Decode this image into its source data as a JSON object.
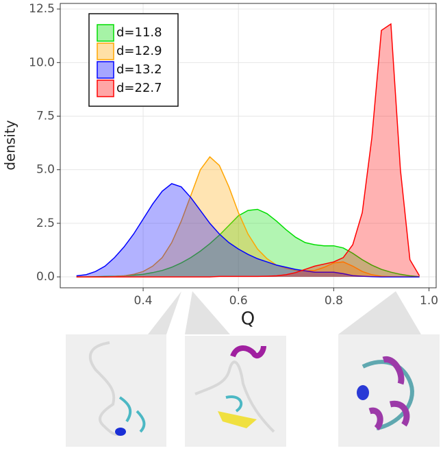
{
  "chart_data": {
    "type": "area",
    "x_label": "Q",
    "y_label": "density",
    "x": [
      0.26,
      0.28,
      0.3,
      0.32,
      0.34,
      0.36,
      0.38,
      0.4,
      0.42,
      0.44,
      0.46,
      0.48,
      0.5,
      0.52,
      0.54,
      0.56,
      0.58,
      0.6,
      0.62,
      0.64,
      0.66,
      0.68,
      0.7,
      0.72,
      0.74,
      0.76,
      0.78,
      0.8,
      0.82,
      0.84,
      0.86,
      0.88,
      0.9,
      0.92,
      0.94,
      0.96,
      0.98
    ],
    "series": [
      {
        "name": "d=11.8",
        "color": "#00dd00",
        "values": [
          0,
          0,
          0.01,
          0.02,
          0.03,
          0.05,
          0.08,
          0.12,
          0.2,
          0.3,
          0.45,
          0.65,
          0.9,
          1.2,
          1.55,
          1.95,
          2.4,
          2.85,
          3.1,
          3.15,
          2.95,
          2.6,
          2.2,
          1.85,
          1.6,
          1.5,
          1.45,
          1.45,
          1.35,
          1.1,
          0.8,
          0.55,
          0.35,
          0.22,
          0.12,
          0.05,
          0.01
        ]
      },
      {
        "name": "d=12.9",
        "color": "#ffa500",
        "values": [
          0,
          0,
          0,
          0,
          0.02,
          0.05,
          0.12,
          0.25,
          0.5,
          0.9,
          1.6,
          2.6,
          3.8,
          5.0,
          5.6,
          5.2,
          4.2,
          3.0,
          2.0,
          1.3,
          0.85,
          0.55,
          0.4,
          0.3,
          0.28,
          0.3,
          0.45,
          0.65,
          0.7,
          0.5,
          0.25,
          0.1,
          0.03,
          0.01,
          0,
          0,
          0
        ]
      },
      {
        "name": "d=13.2",
        "color": "#0000ff",
        "values": [
          0.05,
          0.1,
          0.25,
          0.5,
          0.9,
          1.4,
          2.0,
          2.7,
          3.4,
          4.0,
          4.35,
          4.2,
          3.7,
          3.1,
          2.5,
          2.0,
          1.6,
          1.3,
          1.05,
          0.85,
          0.7,
          0.55,
          0.45,
          0.35,
          0.28,
          0.22,
          0.22,
          0.22,
          0.15,
          0.06,
          0.03,
          0.01,
          0,
          0,
          0,
          0,
          0
        ]
      },
      {
        "name": "d=22.7",
        "color": "#ff0000",
        "values": [
          0,
          0,
          0,
          0,
          0,
          0,
          0,
          0,
          0,
          0,
          0,
          0,
          0,
          0,
          0,
          0.02,
          0.02,
          0.02,
          0.02,
          0.02,
          0.03,
          0.05,
          0.1,
          0.2,
          0.35,
          0.5,
          0.6,
          0.7,
          0.9,
          1.5,
          3.0,
          6.5,
          11.5,
          11.8,
          5.0,
          0.8,
          0.05
        ]
      }
    ],
    "xlim": [
      0.226,
      1.015
    ],
    "ylim": [
      -0.51,
      12.76
    ],
    "xticks": [
      0.4,
      0.6,
      0.8,
      {
        "value": 1.0,
        "label": "1.0"
      }
    ],
    "yticks": [
      {
        "value": 0,
        "label": "0.0"
      },
      2.5,
      {
        "value": 5,
        "label": "5.0"
      },
      7.5,
      {
        "value": 10,
        "label": "10.0"
      },
      12.5
    ],
    "grid": true,
    "legend": "top-left"
  }
}
